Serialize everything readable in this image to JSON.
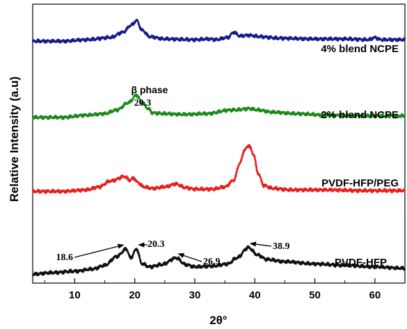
{
  "chart_data": {
    "type": "line",
    "xlabel": "2θ°",
    "ylabel": "Relative Intensity (a.u)",
    "xlim": [
      3,
      65
    ],
    "xticks": [
      10,
      20,
      30,
      40,
      50,
      60
    ],
    "y_ticks_shown": false,
    "grid": false,
    "legend": "inline labels at right",
    "series": [
      {
        "name": "4% blend NCPE",
        "color": "#1a1a8c",
        "offset": 3.15,
        "x": [
          3,
          8,
          12,
          16,
          18,
          19.5,
          20.3,
          21.2,
          22.5,
          25,
          30,
          32.5,
          33.5,
          35.5,
          36.5,
          37.5,
          39,
          41,
          44,
          50,
          55,
          59,
          60,
          61,
          65
        ],
        "y": [
          0.0,
          0.0,
          0.02,
          0.05,
          0.12,
          0.22,
          0.28,
          0.15,
          0.06,
          0.03,
          0.02,
          0.03,
          0.02,
          0.05,
          0.12,
          0.07,
          0.08,
          0.06,
          0.04,
          0.03,
          0.03,
          0.02,
          0.05,
          0.02,
          0.02
        ]
      },
      {
        "name": "2% blend NCPE",
        "color": "#1b8a1b",
        "offset": 2.12,
        "x": [
          3,
          8,
          12,
          15,
          17,
          19,
          20.3,
          21.2,
          22.2,
          23,
          25,
          28,
          32,
          36,
          37,
          38,
          39,
          40.5,
          43,
          47,
          52,
          58,
          65
        ],
        "y": [
          0.0,
          0.0,
          0.03,
          0.05,
          0.1,
          0.2,
          0.3,
          0.2,
          0.12,
          0.06,
          0.05,
          0.04,
          0.05,
          0.1,
          0.1,
          0.11,
          0.12,
          0.1,
          0.07,
          0.05,
          0.03,
          0.02,
          0.02
        ]
      },
      {
        "name": "PVDF-HFP/PEG",
        "color": "#e81e1e",
        "offset": 1.12,
        "x": [
          3,
          8,
          12,
          14,
          16,
          18.3,
          19.2,
          19.8,
          20.5,
          21.5,
          23,
          25,
          26.8,
          28.5,
          30,
          33,
          35,
          36.5,
          37.5,
          38.3,
          39,
          39.8,
          40.5,
          41.5,
          43,
          46,
          52,
          58,
          65
        ],
        "y": [
          0.0,
          0.0,
          0.02,
          0.06,
          0.14,
          0.2,
          0.15,
          0.18,
          0.12,
          0.06,
          0.04,
          0.06,
          0.1,
          0.05,
          0.03,
          0.03,
          0.06,
          0.15,
          0.38,
          0.56,
          0.62,
          0.5,
          0.25,
          0.08,
          0.04,
          0.02,
          0.02,
          0.01,
          0.01
        ]
      },
      {
        "name": "PVDF-HFP",
        "color": "#111111",
        "offset": 0.0,
        "x": [
          3,
          6,
          10,
          13,
          15,
          17,
          18.6,
          19.3,
          20.3,
          21.2,
          22.5,
          24.5,
          26.9,
          28.5,
          30,
          33,
          35.5,
          37,
          38.9,
          40.5,
          42,
          45,
          50,
          55,
          60,
          65
        ],
        "y": [
          0.0,
          0.02,
          0.04,
          0.07,
          0.12,
          0.24,
          0.34,
          0.22,
          0.34,
          0.14,
          0.1,
          0.13,
          0.22,
          0.13,
          0.1,
          0.11,
          0.14,
          0.22,
          0.36,
          0.26,
          0.2,
          0.17,
          0.14,
          0.12,
          0.1,
          0.08
        ]
      }
    ],
    "annotations": [
      {
        "text": "18.6",
        "x": 18.6,
        "series": "PVDF-HFP"
      },
      {
        "text": "20.3",
        "x": 20.3,
        "series": "PVDF-HFP"
      },
      {
        "text": "26.9",
        "x": 26.9,
        "series": "PVDF-HFP"
      },
      {
        "text": "38.9",
        "x": 38.9,
        "series": "PVDF-HFP"
      }
    ],
    "phase_annotation": {
      "line1": "β phase",
      "line2": "20.3",
      "x": 20.3
    }
  }
}
